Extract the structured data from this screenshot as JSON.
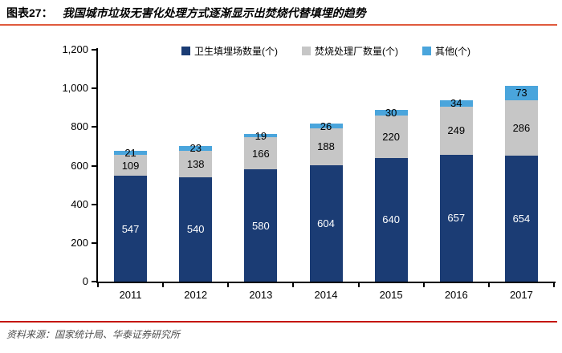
{
  "header": {
    "figure_label": "图表27：",
    "title": "我国城市垃圾无害化处理方式逐渐显示出焚烧代替填埋的趋势"
  },
  "footer": {
    "source": "资料来源：国家统计局、华泰证券研究所"
  },
  "colors": {
    "title_rule": "#e05a3e",
    "footer_rule": "#c41500",
    "axis": "#000000",
    "landfill": "#1b3c74",
    "incineration": "#c6c6c6",
    "other": "#4aa5dc"
  },
  "chart_data": {
    "type": "bar",
    "stacked": true,
    "grid": false,
    "legend_position": "top-center",
    "title": "我国城市垃圾无害化处理方式逐渐显示出焚烧代替填埋的趋势",
    "xlabel": "",
    "ylabel": "",
    "ylim": [
      0,
      1200
    ],
    "yticks": [
      "0",
      "200",
      "400",
      "600",
      "800",
      "1,000",
      "1,200"
    ],
    "ytick_values": [
      0,
      200,
      400,
      600,
      800,
      1000,
      1200
    ],
    "categories": [
      "2011",
      "2012",
      "2013",
      "2014",
      "2015",
      "2016",
      "2017"
    ],
    "series": [
      {
        "name": "卫生填埋场数量(个)",
        "color": "#1b3c74",
        "label_color": "#ffffff",
        "values": [
          547,
          540,
          580,
          604,
          640,
          657,
          654
        ]
      },
      {
        "name": "焚烧处理厂数量(个)",
        "color": "#c6c6c6",
        "label_color": "#000000",
        "values": [
          109,
          138,
          166,
          188,
          220,
          249,
          286
        ]
      },
      {
        "name": "其他(个)",
        "color": "#4aa5dc",
        "label_color": "#000000",
        "values": [
          21,
          23,
          19,
          26,
          30,
          34,
          73
        ]
      }
    ]
  }
}
